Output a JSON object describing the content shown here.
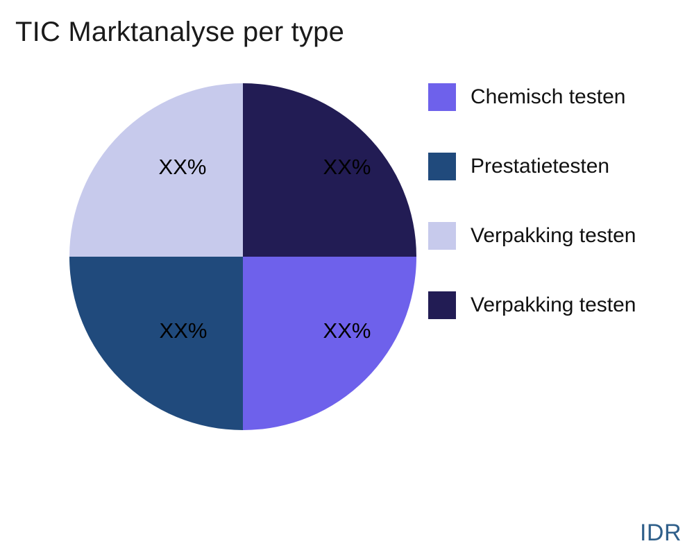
{
  "title": "TIC Marktanalyse per type",
  "watermark": "IDR",
  "colors": {
    "background": "#ffffff",
    "title_text": "#1a1a1a",
    "slice_label_text": "#000000",
    "watermark_text": "#2f5f8a",
    "chemisch": "#6e61eb",
    "prestatie": "#204a7c",
    "verpakking_light": "#c7caec",
    "verpakking_dark": "#221c54"
  },
  "chart_data": {
    "type": "pie",
    "title": "TIC Marktanalyse per type",
    "values_masked": true,
    "legend_position": "right",
    "slices": [
      {
        "name": "Verpakking testen",
        "label": "XX%",
        "value": 25,
        "color": "#221c54"
      },
      {
        "name": "Chemisch testen",
        "label": "XX%",
        "value": 25,
        "color": "#6e61eb"
      },
      {
        "name": "Prestatietesten",
        "label": "XX%",
        "value": 25,
        "color": "#204a7c"
      },
      {
        "name": "Verpakking testen",
        "label": "XX%",
        "value": 25,
        "color": "#c7caec"
      }
    ],
    "legend": [
      {
        "label": "Chemisch testen",
        "color": "#6e61eb"
      },
      {
        "label": "Prestatietesten",
        "color": "#204a7c"
      },
      {
        "label": "Verpakking testen",
        "color": "#c7caec"
      },
      {
        "label": "Verpakking testen",
        "color": "#221c54"
      }
    ]
  }
}
